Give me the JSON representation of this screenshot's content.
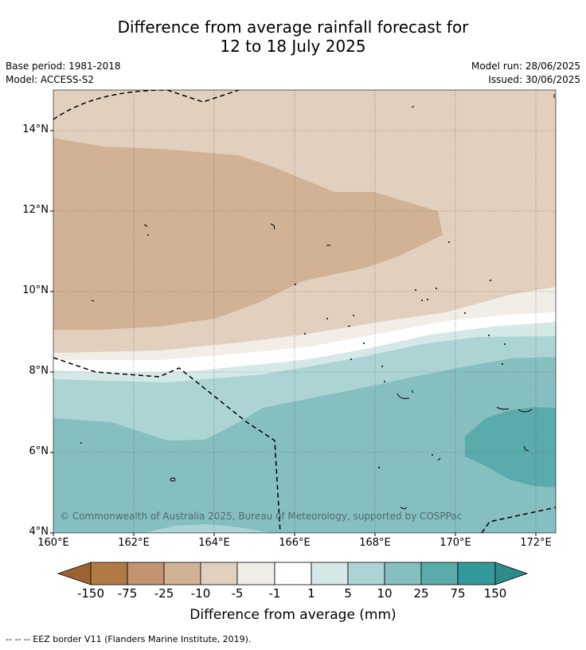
{
  "title_line1": "Difference from average rainfall forecast for",
  "title_line2": "12 to 18 July 2025",
  "meta_left": [
    "Base period: 1981-2018",
    "Model: ACCESS-S2"
  ],
  "meta_right": [
    "Model run: 28/06/2025",
    "Issued: 30/06/2025"
  ],
  "map": {
    "lat_labels": [
      "14°N",
      "12°N",
      "10°N",
      "8°N",
      "6°N",
      "4°N"
    ],
    "lon_labels": [
      "160°E",
      "162°E",
      "164°E",
      "166°E",
      "168°E",
      "170°E",
      "172°E"
    ],
    "copyright": "© Commonwealth of Australia 2025, Bureau of Meteorology, supported by COSPPac",
    "extent": {
      "lon_min": 160,
      "lon_max": 172.5,
      "lat_min": 4,
      "lat_max": 15
    }
  },
  "colorbar": {
    "ticks": [
      "-150",
      "-75",
      "-25",
      "-10",
      "-5",
      "-1",
      "1",
      "5",
      "10",
      "25",
      "75",
      "150"
    ],
    "colors": [
      "#9c6330",
      "#b07a45",
      "#c29470",
      "#d2b295",
      "#e2d0bf",
      "#f2ede7",
      "#ffffff",
      "#d4e8e7",
      "#acd4d4",
      "#86bfc0",
      "#5aabab",
      "#33999a",
      "#2f8b8b"
    ],
    "title": "Difference from average (mm)"
  },
  "footnote": "--  --  -- EEZ border V11 (Flanders Marine Institute, 2019)."
}
